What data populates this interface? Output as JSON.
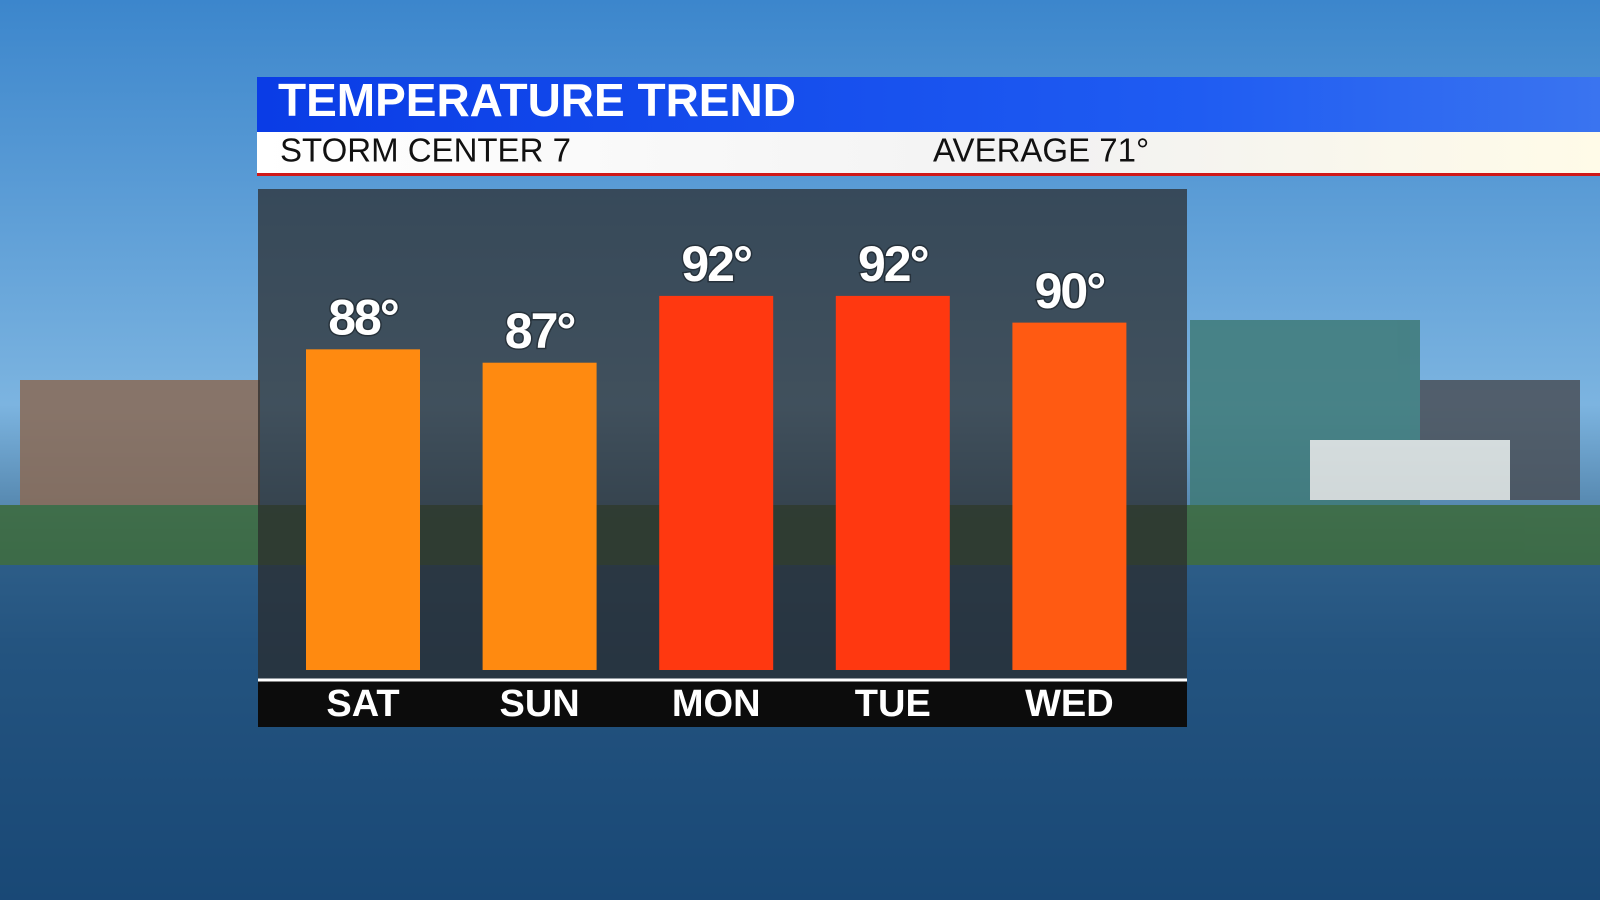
{
  "chart_data": {
    "type": "bar",
    "title": "TEMPERATURE TREND",
    "subtitle": "STORM CENTER 7",
    "annotation": "AVERAGE 71°",
    "categories": [
      "SAT",
      "SUN",
      "MON",
      "TUE",
      "WED"
    ],
    "values": [
      88,
      87,
      92,
      92,
      90
    ],
    "value_labels": [
      "88°",
      "87°",
      "92°",
      "92°",
      "90°"
    ],
    "colors": [
      "#ff8a10",
      "#ff8a10",
      "#ff3810",
      "#ff3810",
      "#ff5a12"
    ],
    "ylim": [
      64,
      100
    ]
  }
}
